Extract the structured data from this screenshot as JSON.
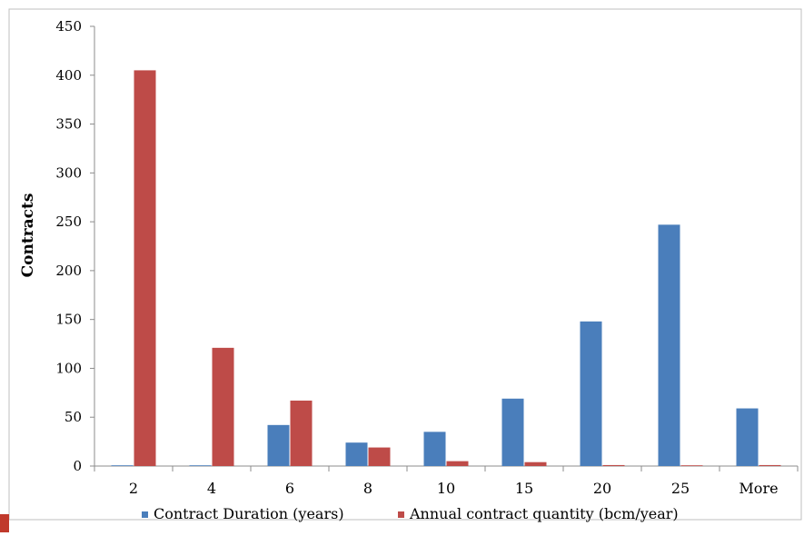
{
  "chart_data": {
    "type": "bar",
    "title": "",
    "xlabel": "",
    "ylabel": "Contracts",
    "ylim": [
      0,
      450
    ],
    "yticks": [
      0,
      50,
      100,
      150,
      200,
      250,
      300,
      350,
      400,
      450
    ],
    "categories": [
      "2",
      "4",
      "6",
      "8",
      "10",
      "15",
      "20",
      "25",
      "More"
    ],
    "series": [
      {
        "name": "Contract Duration (years)",
        "color": "#4a7ebb",
        "values": [
          0,
          0,
          42,
          24,
          35,
          69,
          148,
          247,
          59
        ]
      },
      {
        "name": "Annual contract quantity (bcm/year)",
        "color": "#be4b48",
        "values": [
          405,
          121,
          67,
          19,
          5,
          4,
          1,
          0,
          1
        ]
      }
    ],
    "grid": false,
    "legend_position": "bottom"
  }
}
